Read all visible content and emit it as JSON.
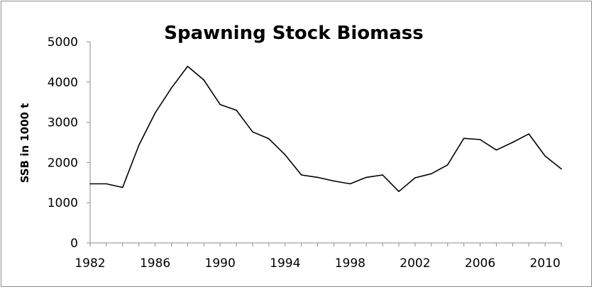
{
  "chart_data": {
    "type": "line",
    "title": "Spawning Stock Biomass",
    "xlabel": "",
    "ylabel": "SSB in 1000 t",
    "ylim": [
      0,
      5000
    ],
    "xlim": [
      1982,
      2011
    ],
    "y_ticks": [
      "0",
      "1000",
      "2000",
      "3000",
      "4000",
      "5000"
    ],
    "x_ticks": [
      "1982",
      "1986",
      "1990",
      "1994",
      "1998",
      "2002",
      "2006",
      "2010"
    ],
    "grid": false,
    "legend": "none",
    "series": [
      {
        "color": "#000000",
        "x": [
          1982,
          1983,
          1984,
          1985,
          1986,
          1987,
          1988,
          1989,
          1990,
          1991,
          1992,
          1993,
          1994,
          1995,
          1996,
          1997,
          1998,
          1999,
          2000,
          2001,
          2002,
          2003,
          2004,
          2005,
          2006,
          2007,
          2008,
          2009,
          2010,
          2011
        ],
        "values": [
          1470,
          1470,
          1380,
          2430,
          3230,
          3850,
          4390,
          4050,
          3440,
          3300,
          2760,
          2590,
          2190,
          1690,
          1630,
          1540,
          1470,
          1630,
          1690,
          1280,
          1620,
          1720,
          1940,
          2600,
          2570,
          2310,
          2500,
          2710,
          2160,
          1840
        ]
      }
    ]
  }
}
